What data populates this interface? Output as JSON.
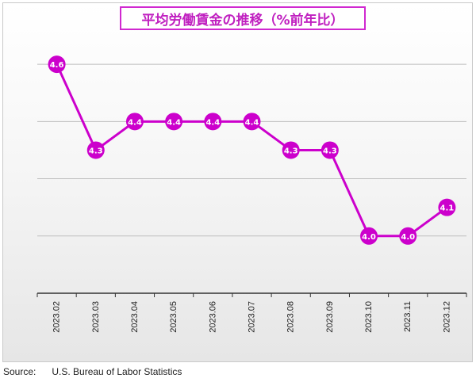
{
  "chart_data": {
    "type": "line",
    "title": "平均労働賃金の推移（%前年比）",
    "categories": [
      "2023.02",
      "2023.03",
      "2023.04",
      "2023.05",
      "2023.06",
      "2023.07",
      "2023.08",
      "2023.09",
      "2023.10",
      "2023.11",
      "2023.12"
    ],
    "series": [
      {
        "values": [
          4.6,
          4.3,
          4.4,
          4.4,
          4.4,
          4.4,
          4.3,
          4.3,
          4.0,
          4.0,
          4.1
        ]
      }
    ],
    "data_labels": [
      "4.6",
      "4.3",
      "4.4",
      "4.4",
      "4.4",
      "4.4",
      "4.3",
      "4.3",
      "4.0",
      "4.0",
      "4.1"
    ],
    "ylim": [
      3.8,
      4.7
    ],
    "y_gridlines": [
      4.0,
      4.2,
      4.4,
      4.6
    ],
    "grid": true,
    "legend": "none",
    "x_tick_rotation": "vertical",
    "colors": {
      "line": "#cc00cc",
      "marker": "#cc00cc",
      "marker_text": "#ffffff",
      "title": "#c020c0",
      "grid": "#bdbdbd",
      "axis": "#333333"
    }
  },
  "source": {
    "label": "Source:",
    "value": "U.S. Bureau of Labor Statistics"
  }
}
